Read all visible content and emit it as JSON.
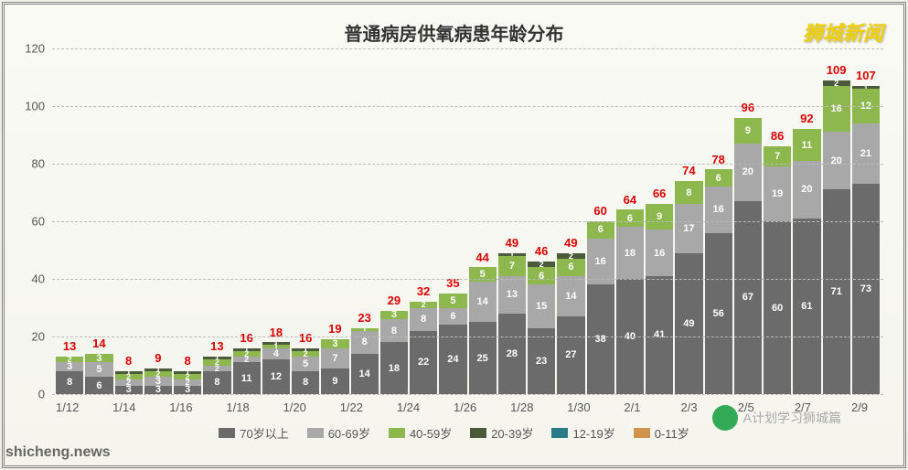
{
  "title": "普通病房供氧病患年龄分布",
  "watermark_tr": "狮城新闻",
  "watermark_br": "A计划学习狮城篇",
  "watermark_bl": "shicheng.news",
  "chart": {
    "type": "stacked-bar",
    "ylim": [
      0,
      120
    ],
    "ytick_step": 20,
    "yticks": [
      0,
      20,
      40,
      60,
      80,
      100,
      120
    ],
    "background_color": "#fafaf5",
    "grid_color": "#bbbbbb",
    "total_label_color": "#dd0000",
    "axis_label_color": "#555555",
    "series": [
      {
        "key": "s70",
        "label": "70岁以上",
        "color": "#6b6b6b"
      },
      {
        "key": "s60",
        "label": "60-69岁",
        "color": "#a8a8a8"
      },
      {
        "key": "s40",
        "label": "40-59岁",
        "color": "#8db84d"
      },
      {
        "key": "s20",
        "label": "20-39岁",
        "color": "#4a5a3a"
      },
      {
        "key": "s12",
        "label": "12-19岁",
        "color": "#2a7a8a"
      },
      {
        "key": "s0",
        "label": "0-11岁",
        "color": "#d0954a"
      }
    ],
    "x_labels": [
      "1/12",
      "1/14",
      "1/16",
      "1/18",
      "1/20",
      "1/22",
      "1/24",
      "1/26",
      "1/28",
      "1/30",
      "2/1",
      "2/3",
      "2/5",
      "2/7",
      "2/9"
    ],
    "bars": [
      {
        "date": "1/12",
        "total": 13,
        "segs": [
          {
            "k": "s70",
            "v": 8
          },
          {
            "k": "s60",
            "v": 3
          },
          {
            "k": "s40",
            "v": 2
          }
        ]
      },
      {
        "date": "1/13",
        "total": 14,
        "segs": [
          {
            "k": "s70",
            "v": 6
          },
          {
            "k": "s60",
            "v": 5
          },
          {
            "k": "s40",
            "v": 3
          }
        ]
      },
      {
        "date": "1/14",
        "total": 8,
        "segs": [
          {
            "k": "s70",
            "v": 3
          },
          {
            "k": "s60",
            "v": 2
          },
          {
            "k": "s40",
            "v": 2
          },
          {
            "k": "s20",
            "v": 1
          }
        ]
      },
      {
        "date": "1/15",
        "total": 9,
        "segs": [
          {
            "k": "s70",
            "v": 3
          },
          {
            "k": "s60",
            "v": 3
          },
          {
            "k": "s40",
            "v": 2
          },
          {
            "k": "s20",
            "v": 1
          }
        ]
      },
      {
        "date": "1/16",
        "total": 8,
        "segs": [
          {
            "k": "s70",
            "v": 3
          },
          {
            "k": "s60",
            "v": 2
          },
          {
            "k": "s40",
            "v": 2
          },
          {
            "k": "s20",
            "v": 1
          }
        ]
      },
      {
        "date": "1/17",
        "total": 13,
        "segs": [
          {
            "k": "s70",
            "v": 8
          },
          {
            "k": "s60",
            "v": 2
          },
          {
            "k": "s40",
            "v": 2
          },
          {
            "k": "s20",
            "v": 1
          }
        ]
      },
      {
        "date": "1/18",
        "total": 16,
        "segs": [
          {
            "k": "s70",
            "v": 11
          },
          {
            "k": "s60",
            "v": 2
          },
          {
            "k": "s40",
            "v": 2
          },
          {
            "k": "s20",
            "v": 1
          }
        ]
      },
      {
        "date": "1/19",
        "total": 18,
        "segs": [
          {
            "k": "s70",
            "v": 12
          },
          {
            "k": "s60",
            "v": 4
          },
          {
            "k": "s40",
            "v": 1
          },
          {
            "k": "s20",
            "v": 1
          }
        ]
      },
      {
        "date": "1/20",
        "total": 16,
        "segs": [
          {
            "k": "s70",
            "v": 8
          },
          {
            "k": "s60",
            "v": 5
          },
          {
            "k": "s40",
            "v": 2
          },
          {
            "k": "s20",
            "v": 1
          }
        ]
      },
      {
        "date": "1/21",
        "total": 19,
        "segs": [
          {
            "k": "s70",
            "v": 9
          },
          {
            "k": "s60",
            "v": 7
          },
          {
            "k": "s40",
            "v": 3
          }
        ]
      },
      {
        "date": "1/22",
        "total": 23,
        "segs": [
          {
            "k": "s70",
            "v": 14
          },
          {
            "k": "s60",
            "v": 8
          },
          {
            "k": "s40",
            "v": 1
          }
        ]
      },
      {
        "date": "1/23",
        "total": 29,
        "segs": [
          {
            "k": "s70",
            "v": 18
          },
          {
            "k": "s60",
            "v": 8
          },
          {
            "k": "s40",
            "v": 3
          }
        ]
      },
      {
        "date": "1/24",
        "total": 32,
        "segs": [
          {
            "k": "s70",
            "v": 22
          },
          {
            "k": "s60",
            "v": 8
          },
          {
            "k": "s40",
            "v": 2
          }
        ]
      },
      {
        "date": "1/25",
        "total": 35,
        "segs": [
          {
            "k": "s70",
            "v": 24
          },
          {
            "k": "s60",
            "v": 6
          },
          {
            "k": "s40",
            "v": 5
          }
        ]
      },
      {
        "date": "1/26",
        "total": 44,
        "segs": [
          {
            "k": "s70",
            "v": 25
          },
          {
            "k": "s60",
            "v": 14
          },
          {
            "k": "s40",
            "v": 5
          }
        ]
      },
      {
        "date": "1/27",
        "total": 49,
        "segs": [
          {
            "k": "s70",
            "v": 28
          },
          {
            "k": "s60",
            "v": 13
          },
          {
            "k": "s40",
            "v": 7
          },
          {
            "k": "s20",
            "v": 1
          }
        ]
      },
      {
        "date": "1/28",
        "total": 46,
        "segs": [
          {
            "k": "s70",
            "v": 23
          },
          {
            "k": "s60",
            "v": 15
          },
          {
            "k": "s40",
            "v": 6
          },
          {
            "k": "s20",
            "v": 2
          }
        ]
      },
      {
        "date": "1/29",
        "total": 49,
        "segs": [
          {
            "k": "s70",
            "v": 27
          },
          {
            "k": "s60",
            "v": 14
          },
          {
            "k": "s40",
            "v": 6
          },
          {
            "k": "s20",
            "v": 2
          }
        ]
      },
      {
        "date": "1/30",
        "total": 60,
        "segs": [
          {
            "k": "s70",
            "v": 38
          },
          {
            "k": "s60",
            "v": 16
          },
          {
            "k": "s40",
            "v": 6
          }
        ]
      },
      {
        "date": "1/31",
        "total": 64,
        "segs": [
          {
            "k": "s70",
            "v": 40
          },
          {
            "k": "s60",
            "v": 18
          },
          {
            "k": "s40",
            "v": 6
          }
        ]
      },
      {
        "date": "2/1",
        "total": 66,
        "segs": [
          {
            "k": "s70",
            "v": 41
          },
          {
            "k": "s60",
            "v": 16
          },
          {
            "k": "s40",
            "v": 9
          }
        ]
      },
      {
        "date": "2/2",
        "total": 74,
        "segs": [
          {
            "k": "s70",
            "v": 49
          },
          {
            "k": "s60",
            "v": 17
          },
          {
            "k": "s40",
            "v": 8
          }
        ]
      },
      {
        "date": "2/3",
        "total": 78,
        "segs": [
          {
            "k": "s70",
            "v": 56
          },
          {
            "k": "s60",
            "v": 16
          },
          {
            "k": "s40",
            "v": 6
          }
        ]
      },
      {
        "date": "2/4",
        "total": 96,
        "segs": [
          {
            "k": "s70",
            "v": 67
          },
          {
            "k": "s60",
            "v": 20
          },
          {
            "k": "s40",
            "v": 9
          }
        ]
      },
      {
        "date": "2/5",
        "total": 86,
        "segs": [
          {
            "k": "s70",
            "v": 60
          },
          {
            "k": "s60",
            "v": 19
          },
          {
            "k": "s40",
            "v": 7
          }
        ]
      },
      {
        "date": "2/6",
        "total": 92,
        "segs": [
          {
            "k": "s70",
            "v": 61
          },
          {
            "k": "s60",
            "v": 20
          },
          {
            "k": "s40",
            "v": 11
          }
        ]
      },
      {
        "date": "2/7",
        "total": 109,
        "segs": [
          {
            "k": "s70",
            "v": 71
          },
          {
            "k": "s60",
            "v": 20
          },
          {
            "k": "s40",
            "v": 16
          },
          {
            "k": "s20",
            "v": 2
          }
        ]
      },
      {
        "date": "2/8",
        "total": 107,
        "segs": [
          {
            "k": "s70",
            "v": 73
          },
          {
            "k": "s60",
            "v": 21
          },
          {
            "k": "s40",
            "v": 12
          },
          {
            "k": "s20",
            "v": 1
          }
        ]
      }
    ]
  }
}
